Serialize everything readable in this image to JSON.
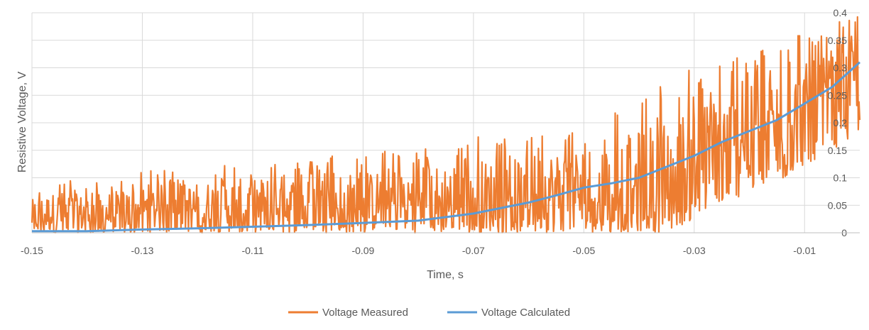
{
  "chart_data": {
    "type": "line",
    "title": "",
    "xlabel": "Time, s",
    "ylabel": "Resistive Voltage, V",
    "xlim": [
      -0.15,
      0
    ],
    "ylim": [
      0,
      0.4
    ],
    "x_ticks": [
      "-0.15",
      "-0.13",
      "-0.11",
      "-0.09",
      "-0.07",
      "-0.05",
      "-0.03",
      "-0.01"
    ],
    "x_tick_values": [
      -0.15,
      -0.13,
      -0.11,
      -0.09,
      -0.07,
      -0.05,
      -0.03,
      -0.01
    ],
    "y_ticks": [
      "0",
      "0.05",
      "0.1",
      "0.15",
      "0.2",
      "0.25",
      "0.3",
      "0.35",
      "0.4"
    ],
    "y_tick_values": [
      0,
      0.05,
      0.1,
      0.15,
      0.2,
      0.25,
      0.3,
      0.35,
      0.4
    ],
    "grid": true,
    "legend_position": "bottom",
    "series": [
      {
        "name": "Voltage Measured",
        "color": "#ED7D31",
        "x": [
          -0.15,
          -0.145,
          -0.14,
          -0.135,
          -0.13,
          -0.125,
          -0.12,
          -0.115,
          -0.11,
          -0.105,
          -0.1,
          -0.095,
          -0.09,
          -0.085,
          -0.08,
          -0.075,
          -0.07,
          -0.065,
          -0.06,
          -0.055,
          -0.05,
          -0.045,
          -0.04,
          -0.035,
          -0.03,
          -0.025,
          -0.02,
          -0.015,
          -0.01,
          -0.005,
          0
        ],
        "y": [
          0.03,
          0.035,
          0.04,
          0.04,
          0.045,
          0.045,
          0.05,
          0.05,
          0.05,
          0.05,
          0.055,
          0.055,
          0.06,
          0.06,
          0.065,
          0.07,
          0.07,
          0.075,
          0.08,
          0.09,
          0.1,
          0.11,
          0.12,
          0.14,
          0.16,
          0.18,
          0.2,
          0.22,
          0.25,
          0.27,
          0.3
        ],
        "upper_envelope": [
          0.08,
          0.1,
          0.09,
          0.1,
          0.11,
          0.12,
          0.12,
          0.13,
          0.13,
          0.14,
          0.13,
          0.15,
          0.14,
          0.16,
          0.15,
          0.17,
          0.18,
          0.17,
          0.19,
          0.2,
          0.21,
          0.22,
          0.25,
          0.28,
          0.3,
          0.32,
          0.33,
          0.35,
          0.37,
          0.38,
          0.4
        ],
        "lower_envelope": [
          0,
          0,
          0,
          0,
          0,
          0,
          0,
          0,
          0,
          0,
          0,
          0,
          0,
          0,
          0,
          0,
          0,
          0,
          0,
          0,
          0,
          0,
          0,
          0,
          0.02,
          0.05,
          0.07,
          0.09,
          0.12,
          0.15,
          0.18
        ]
      },
      {
        "name": "Voltage Calculated",
        "color": "#5B9BD5",
        "x": [
          -0.15,
          -0.14,
          -0.13,
          -0.12,
          -0.11,
          -0.1,
          -0.09,
          -0.08,
          -0.07,
          -0.065,
          -0.06,
          -0.055,
          -0.05,
          -0.045,
          -0.04,
          -0.035,
          -0.03,
          -0.025,
          -0.02,
          -0.015,
          -0.01,
          -0.005,
          0
        ],
        "y": [
          0.003,
          0.003,
          0.006,
          0.008,
          0.011,
          0.014,
          0.018,
          0.022,
          0.035,
          0.045,
          0.055,
          0.068,
          0.082,
          0.09,
          0.1,
          0.12,
          0.14,
          0.165,
          0.185,
          0.205,
          0.235,
          0.265,
          0.31
        ]
      }
    ]
  }
}
